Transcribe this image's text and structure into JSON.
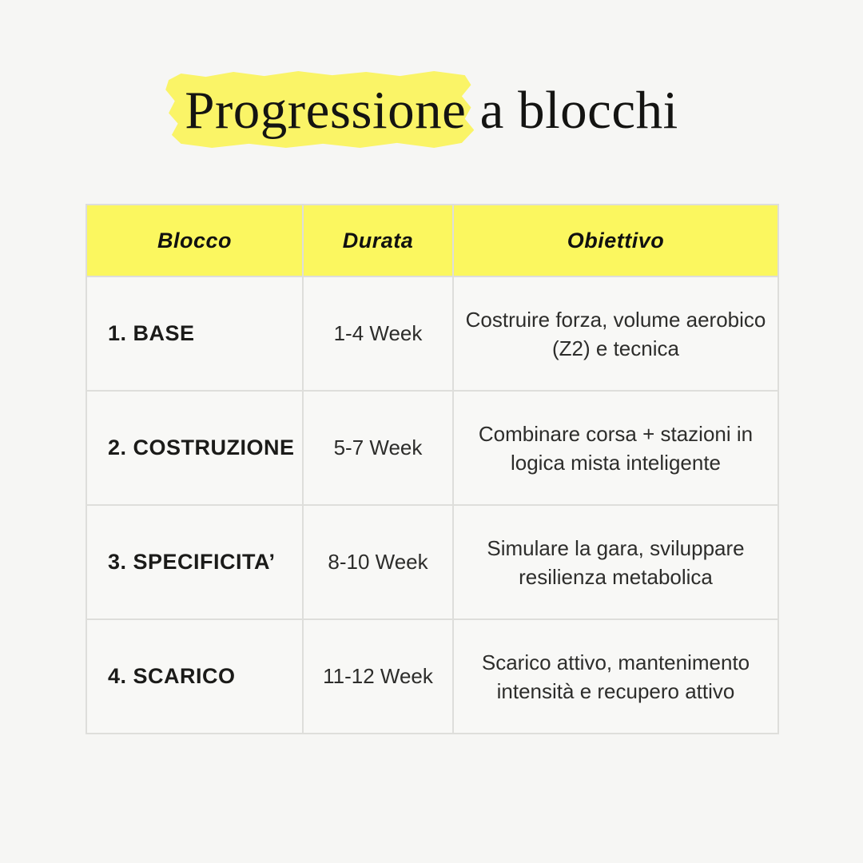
{
  "page": {
    "background": "#f6f6f4"
  },
  "title": {
    "highlighted_text": "Progressione",
    "rest_text": " a blocchi",
    "highlight_color": "#faf467"
  },
  "table": {
    "header": {
      "background": "#fbf75f",
      "columns": [
        "Blocco",
        "Durata",
        "Obiettivo"
      ]
    },
    "rows": [
      {
        "blocco": "1. BASE",
        "durata": "1-4 Week",
        "obiettivo": "Costruire forza, volume aerobico (Z2) e tecnica"
      },
      {
        "blocco": "2. COSTRUZIONE",
        "durata": "5-7 Week",
        "obiettivo": "Combinare corsa + stazioni in logica mista inteligente"
      },
      {
        "blocco": "3. SPECIFICITA’",
        "durata": "8-10 Week",
        "obiettivo": "Simulare la gara, sviluppare resilienza metabolica"
      },
      {
        "blocco": "4. SCARICO",
        "durata": "11-12 Week",
        "obiettivo": "Scarico attivo, mantenimento intensità e recupero attivo"
      }
    ]
  }
}
